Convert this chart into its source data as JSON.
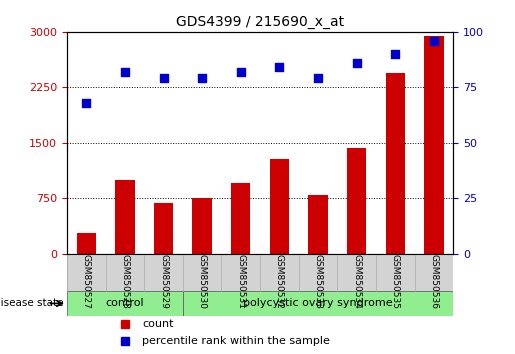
{
  "title": "GDS4399 / 215690_x_at",
  "samples": [
    "GSM850527",
    "GSM850528",
    "GSM850529",
    "GSM850530",
    "GSM850531",
    "GSM850532",
    "GSM850533",
    "GSM850534",
    "GSM850535",
    "GSM850536"
  ],
  "counts": [
    280,
    1000,
    680,
    750,
    950,
    1280,
    800,
    1430,
    2450,
    2950
  ],
  "percentiles": [
    68,
    82,
    79,
    79,
    82,
    84,
    79,
    86,
    90,
    96
  ],
  "ylim_left": [
    0,
    3000
  ],
  "ylim_right": [
    0,
    100
  ],
  "yticks_left": [
    0,
    750,
    1500,
    2250,
    3000
  ],
  "yticks_right": [
    0,
    25,
    50,
    75,
    100
  ],
  "bar_color": "#cc0000",
  "dot_color": "#0000cc",
  "control_color": "#90ee90",
  "pcos_color": "#90ee90",
  "label_area_color": "#d3d3d3",
  "control_samples": 3,
  "control_label": "control",
  "pcos_label": "polycystic ovary syndrome",
  "disease_state_label": "disease state",
  "legend_count_label": "count",
  "legend_pct_label": "percentile rank within the sample"
}
